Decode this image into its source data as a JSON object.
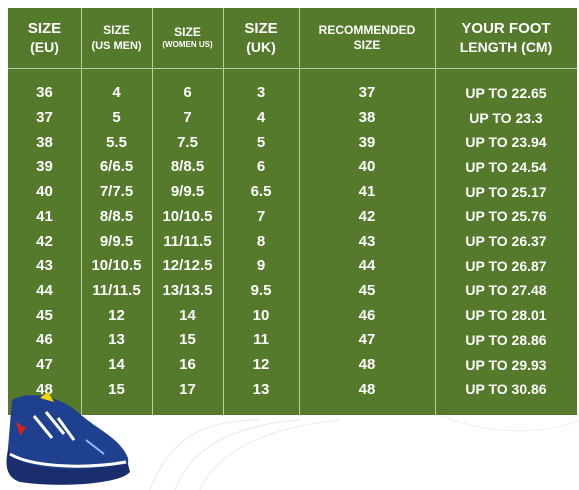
{
  "colors": {
    "panel": "#567a2b",
    "text": "#ffffff",
    "divider": "#b9cfa1",
    "shoe_body": "#1f3f8f",
    "shoe_sole": "#1a2e6e"
  },
  "headers": [
    {
      "line1": "SIZE",
      "line2": "(EU)",
      "style": "large"
    },
    {
      "line1": "SIZE",
      "line2": "(US MEN)",
      "style": "small"
    },
    {
      "line1": "SIZE",
      "line2": "(WOMEN US)",
      "style": "tiny"
    },
    {
      "line1": "SIZE",
      "line2": "(UK)",
      "style": "large"
    },
    {
      "line1": "RECOMMENDED",
      "line2": "SIZE",
      "style": "medium"
    },
    {
      "line1": "YOUR FOOT",
      "line2": "LENGTH (CM)",
      "style": "large"
    }
  ],
  "rows": [
    [
      "36",
      "4",
      "6",
      "3",
      "37",
      "UP TO 22.65"
    ],
    [
      "37",
      "5",
      "7",
      "4",
      "38",
      "UP TO 23.3"
    ],
    [
      "38",
      "5.5",
      "7.5",
      "5",
      "39",
      "UP TO 23.94"
    ],
    [
      "39",
      "6/6.5",
      "8/8.5",
      "6",
      "40",
      "UP TO 24.54"
    ],
    [
      "40",
      "7/7.5",
      "9/9.5",
      "6.5",
      "41",
      "UP TO 25.17"
    ],
    [
      "41",
      "8/8.5",
      "10/10.5",
      "7",
      "42",
      "UP TO 25.76"
    ],
    [
      "42",
      "9/9.5",
      "11/11.5",
      "8",
      "43",
      "UP TO 26.37"
    ],
    [
      "43",
      "10/10.5",
      "12/12.5",
      "9",
      "44",
      "UP TO 26.87"
    ],
    [
      "44",
      "11/11.5",
      "13/13.5",
      "9.5",
      "45",
      "UP TO 27.48"
    ],
    [
      "45",
      "12",
      "14",
      "10",
      "46",
      "UP TO 28.01"
    ],
    [
      "46",
      "13",
      "15",
      "11",
      "47",
      "UP TO 28.86"
    ],
    [
      "47",
      "14",
      "16",
      "12",
      "48",
      "UP TO 29.93"
    ],
    [
      "48",
      "15",
      "17",
      "13",
      "48",
      "UP TO 30.86"
    ]
  ]
}
